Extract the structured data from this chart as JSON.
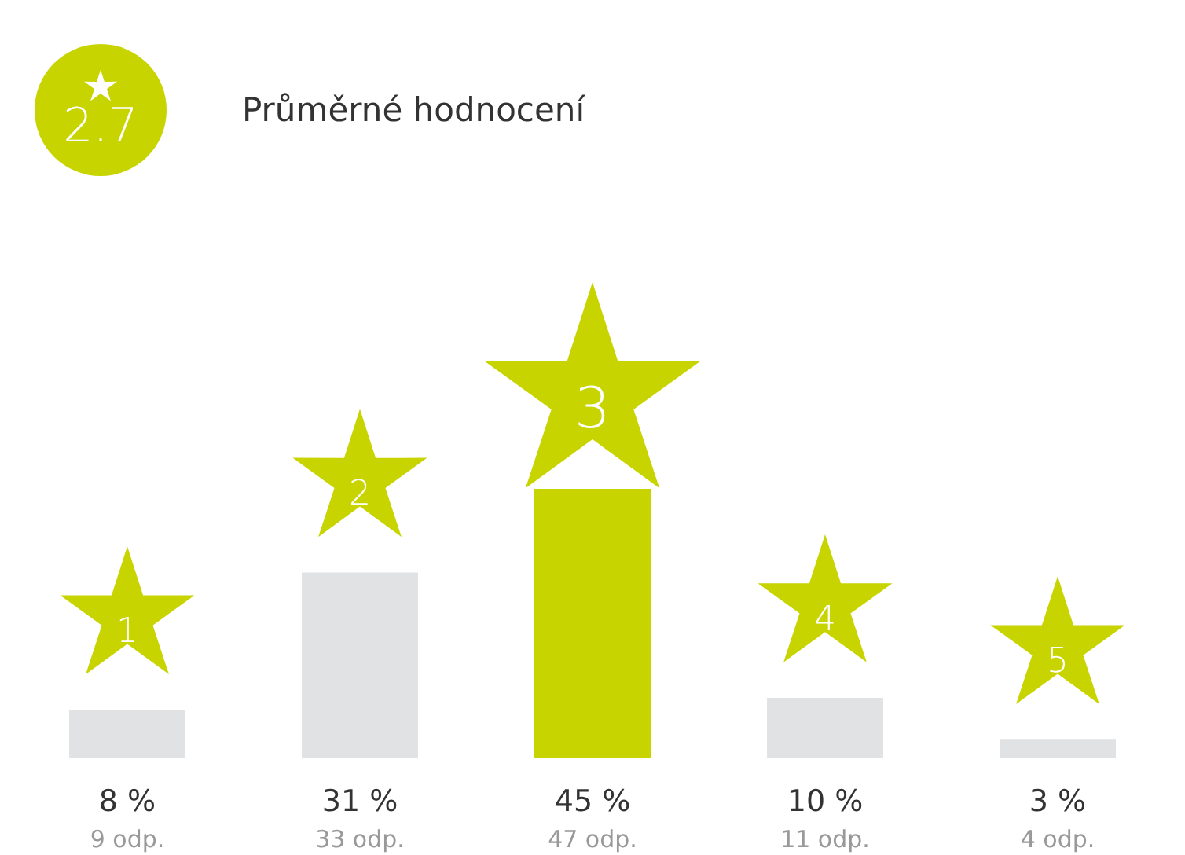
{
  "chart_data": {
    "type": "bar",
    "title": "Průměrné hodnocení",
    "categories": [
      "1",
      "2",
      "3",
      "4",
      "5"
    ],
    "values": [
      8,
      31,
      45,
      10,
      3
    ],
    "value_labels": [
      "8 %",
      "31 %",
      "45 %",
      "10 %",
      "3 %"
    ],
    "colors": [
      "#e1e2e4",
      "#e1e2e4",
      "#c8d400",
      "#e1e2e4",
      "#e1e2e4"
    ],
    "annotations": [
      "2.7",
      "9 odp.",
      "33 odp.",
      "47 odp.",
      "11 odp.",
      "4 odp."
    ]
  }
}
